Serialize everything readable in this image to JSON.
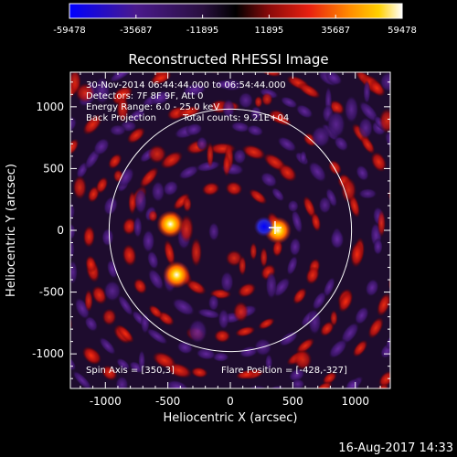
{
  "colorbar": {
    "tick_labels": [
      "-59478",
      "-35687",
      "-11895",
      "11895",
      "35687",
      "59478"
    ],
    "colors": [
      "#0000ff",
      "#4a1a8c",
      "#2a1040",
      "#000000",
      "#8a0a0a",
      "#e82010",
      "#ff8a00",
      "#ffd000",
      "#ffffff"
    ]
  },
  "title": "Reconstructed RHESSI Image",
  "info": {
    "line1": "30-Nov-2014 06:44:44.000 to 06:54:44.000",
    "line2": "Detectors: 7F 8F 9F, Att 0",
    "line3": "Energy Range: 6.0 - 25.0 keV",
    "line4a": "Back Projection",
    "line4b": "Total counts: 9.21E+04",
    "spin_axis": "Spin Axis = [350,3]",
    "flare_position": "Flare Position = [-428,-327]"
  },
  "axes": {
    "xlabel": "Heliocentric X (arcsec)",
    "ylabel": "Heliocentric Y (arcsec)",
    "xticks": [
      "-1000",
      "-500",
      "0",
      "500",
      "1000"
    ],
    "yticks": [
      "1000",
      "500",
      "0",
      "-500",
      "-1000"
    ],
    "xlim": [
      -1280,
      1280
    ],
    "ylim": [
      -1280,
      1280
    ]
  },
  "solar_disk_radius_arcsec": 970,
  "sources": [
    {
      "x": -480,
      "y": 50,
      "level": "bright"
    },
    {
      "x": -430,
      "y": -360,
      "level": "bright"
    },
    {
      "x": 380,
      "y": 0,
      "level": "bright"
    },
    {
      "x": 270,
      "y": 30,
      "level": "negative"
    }
  ],
  "footer_timestamp": "16-Aug-2017 14:33"
}
